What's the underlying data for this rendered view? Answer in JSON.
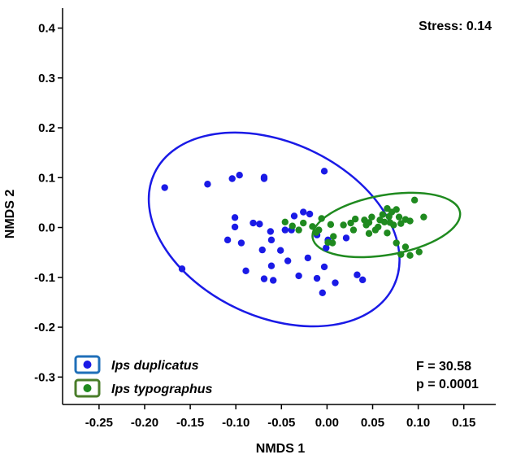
{
  "chart_data": {
    "type": "scatter",
    "xlabel": "NMDS 1",
    "ylabel": "NMDS 2",
    "xlim": [
      -0.29,
      0.185
    ],
    "ylim": [
      -0.355,
      0.44
    ],
    "x_ticks": [
      -0.25,
      -0.2,
      -0.15,
      -0.1,
      -0.05,
      0.0,
      0.05,
      0.1,
      0.15
    ],
    "x_tick_labels": [
      "-0.25",
      "-0.20",
      "-0.15",
      "-0.10",
      "-0.05",
      "0.00",
      "0.05",
      "0.10",
      "0.15"
    ],
    "y_ticks": [
      -0.3,
      -0.2,
      -0.1,
      0.0,
      0.1,
      0.2,
      0.3,
      0.4
    ],
    "y_tick_labels": [
      "-0.3",
      "-0.2",
      "-0.1",
      "0.0",
      "0.1",
      "0.2",
      "0.3",
      "0.4"
    ],
    "grid": false,
    "legend_position": "bottom-left",
    "annotations": {
      "stress": "Stress: 0.14",
      "f_stat": "F = 30.58",
      "p_value": "p = 0.0001"
    },
    "series": [
      {
        "name": "Ips duplicatus",
        "color": "#1a1ae6",
        "legend_box_color": "#1f6fb8",
        "ellipse": {
          "cx": -0.058,
          "cy": -0.004,
          "rx": 0.145,
          "ry": 0.175,
          "rotation_deg": 25
        },
        "points": [
          [
            -0.178,
            0.08
          ],
          [
            -0.159,
            -0.083
          ],
          [
            -0.131,
            0.087
          ],
          [
            -0.104,
            0.098
          ],
          [
            -0.096,
            0.105
          ],
          [
            -0.069,
            0.098
          ],
          [
            -0.069,
            0.101
          ],
          [
            -0.003,
            0.113
          ],
          [
            -0.101,
            0.02
          ],
          [
            -0.101,
            0.001
          ],
          [
            -0.109,
            -0.025
          ],
          [
            -0.094,
            -0.031
          ],
          [
            -0.081,
            0.009
          ],
          [
            -0.074,
            0.007
          ],
          [
            -0.062,
            -0.008
          ],
          [
            -0.061,
            -0.025
          ],
          [
            -0.071,
            -0.045
          ],
          [
            -0.051,
            -0.046
          ],
          [
            -0.046,
            -0.005
          ],
          [
            -0.039,
            -0.005
          ],
          [
            -0.036,
            0.023
          ],
          [
            -0.026,
            0.031
          ],
          [
            -0.019,
            0.027
          ],
          [
            -0.011,
            -0.015
          ],
          [
            -0.021,
            -0.061
          ],
          [
            -0.001,
            -0.041
          ],
          [
            -0.061,
            -0.077
          ],
          [
            -0.089,
            -0.087
          ],
          [
            -0.069,
            -0.103
          ],
          [
            -0.059,
            -0.106
          ],
          [
            -0.031,
            -0.097
          ],
          [
            -0.011,
            -0.102
          ],
          [
            -0.003,
            -0.079
          ],
          [
            0.009,
            -0.111
          ],
          [
            -0.005,
            -0.131
          ],
          [
            0.033,
            -0.095
          ],
          [
            0.039,
            -0.105
          ],
          [
            -0.043,
            -0.067
          ],
          [
            0.001,
            -0.025
          ],
          [
            0.021,
            -0.021
          ]
        ]
      },
      {
        "name": "Ips typographus",
        "color": "#1f8a1f",
        "legend_box_color": "#4a7d2a",
        "ellipse": {
          "cx": 0.065,
          "cy": 0.005,
          "rx": 0.082,
          "ry": 0.06,
          "rotation_deg": -10
        },
        "points": [
          [
            -0.038,
            0.003
          ],
          [
            -0.031,
            -0.005
          ],
          [
            -0.026,
            0.009
          ],
          [
            -0.016,
            0.002
          ],
          [
            -0.012,
            -0.01
          ],
          [
            -0.006,
            0.018
          ],
          [
            0.004,
            0.006
          ],
          [
            0.007,
            -0.018
          ],
          [
            0.001,
            -0.03
          ],
          [
            -0.009,
            -0.005
          ],
          [
            0.018,
            0.005
          ],
          [
            0.026,
            0.009
          ],
          [
            0.031,
            0.017
          ],
          [
            0.029,
            -0.005
          ],
          [
            0.041,
            0.015
          ],
          [
            0.046,
            0.01
          ],
          [
            0.049,
            0.021
          ],
          [
            0.056,
            0.001
          ],
          [
            0.061,
            0.026
          ],
          [
            0.066,
            0.038
          ],
          [
            0.071,
            0.031
          ],
          [
            0.076,
            0.036
          ],
          [
            0.079,
            0.021
          ],
          [
            0.063,
            0.011
          ],
          [
            0.069,
            0.01
          ],
          [
            0.081,
            0.008
          ],
          [
            0.086,
            0.016
          ],
          [
            0.091,
            0.013
          ],
          [
            0.096,
            0.055
          ],
          [
            0.106,
            0.021
          ],
          [
            0.066,
            -0.011
          ],
          [
            0.076,
            -0.031
          ],
          [
            0.086,
            -0.039
          ],
          [
            0.091,
            -0.056
          ],
          [
            0.081,
            -0.054
          ],
          [
            0.101,
            -0.049
          ],
          [
            0.053,
            -0.005
          ],
          [
            0.046,
            -0.012
          ],
          [
            0.058,
            0.015
          ],
          [
            0.073,
            0.005
          ],
          [
            0.068,
            0.022
          ],
          [
            0.043,
            0.005
          ],
          [
            -0.046,
            0.011
          ],
          [
            0.006,
            -0.031
          ]
        ]
      }
    ]
  }
}
